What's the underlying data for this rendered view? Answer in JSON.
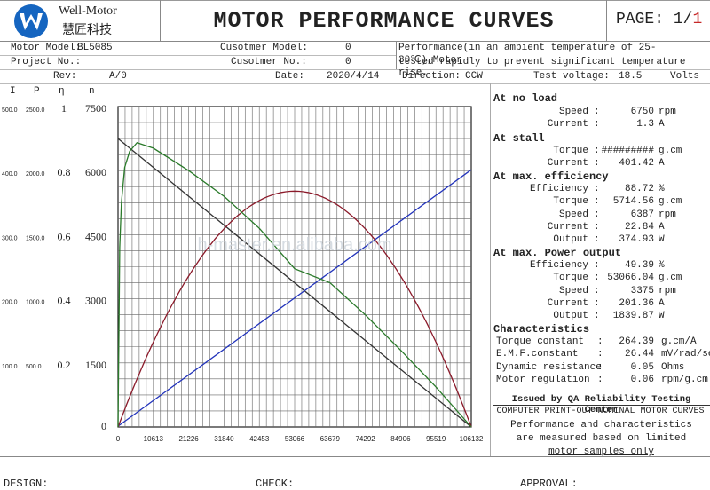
{
  "header": {
    "brand_name": "Well-Motor",
    "brand_chinese": "慧匠科技",
    "title": "MOTOR PERFORMANCE CURVES",
    "page_label": "PAGE:",
    "page_current": "1",
    "page_sep": "/",
    "page_total": "1"
  },
  "info": {
    "motor_model_label": "Motor Model:",
    "motor_model_value": "BL5085",
    "customer_model_label": "Cusotmer Model:",
    "customer_model_value": "0",
    "project_label": "Project No.:",
    "customer_no_label": "Cusotmer No.:",
    "customer_no_value": "0",
    "rev_label": "Rev:",
    "rev_value": "A/0",
    "date_label": "Date:",
    "date_value": "2020/4/14",
    "direction_label": "Direction:",
    "direction_value": "CCW",
    "test_voltage_label": "Test voltage:",
    "test_voltage_value": "18.5",
    "test_voltage_unit": "Volts",
    "note_line1": "Performance(in an ambient temperature of 25-30℃),Motor",
    "note_line2": "tested rapidly to prevent significant temperature rise."
  },
  "axis_headers": {
    "i": "I",
    "p": "P",
    "eta": "η",
    "n": "n"
  },
  "params": {
    "no_load": {
      "title": "At no load",
      "rows": [
        {
          "label": "Speed",
          "value": "6750",
          "unit": "rpm"
        },
        {
          "label": "Current",
          "value": "1.3",
          "unit": "A"
        }
      ]
    },
    "stall": {
      "title": "At stall",
      "rows": [
        {
          "label": "Torque",
          "value": "#########",
          "unit": "g.cm"
        },
        {
          "label": "Current",
          "value": "401.42",
          "unit": "A"
        }
      ]
    },
    "max_eff": {
      "title": "At max. efficiency",
      "rows": [
        {
          "label": "Efficiency",
          "value": "88.72",
          "unit": "%"
        },
        {
          "label": "Torque",
          "value": "5714.56",
          "unit": "g.cm"
        },
        {
          "label": "Speed",
          "value": "6387",
          "unit": "rpm"
        },
        {
          "label": "Current",
          "value": "22.84",
          "unit": "A"
        },
        {
          "label": "Output",
          "value": "374.93",
          "unit": "W"
        }
      ]
    },
    "max_power": {
      "title": "At max. Power output",
      "rows": [
        {
          "label": "Efficiency",
          "value": "49.39",
          "unit": "%"
        },
        {
          "label": "Torque",
          "value": "53066.04",
          "unit": "g.cm"
        },
        {
          "label": "Speed",
          "value": "3375",
          "unit": "rpm"
        },
        {
          "label": "Current",
          "value": "201.36",
          "unit": "A"
        },
        {
          "label": "Output",
          "value": "1839.87",
          "unit": "W"
        }
      ]
    },
    "characteristics": {
      "title": "Characteristics",
      "rows": [
        {
          "label": "Torque constant",
          "value": "264.39",
          "unit": "g.cm/A"
        },
        {
          "label": "E.M.F.constant",
          "value": "26.44",
          "unit": "mV/rad/sec"
        },
        {
          "label": "Dynamic resistance",
          "value": "0.05",
          "unit": "Ohms"
        },
        {
          "label": "Motor regulation",
          "value": "0.06",
          "unit": "rpm/g.cm"
        }
      ]
    },
    "colon": ":"
  },
  "issued": {
    "title": "Issued by QA Reliability Testing Center",
    "line1": "COMPUTER PRINT-OUT NOMINAL MOTOR CURVES",
    "line2": "Performance and characteristics",
    "line3": "are measured based on limited",
    "line4": "motor samples only"
  },
  "footer": {
    "design": "DESIGN:",
    "check": "CHECK:",
    "approval": "APPROVAL:"
  },
  "watermark": "h-master.en.alibaba.com",
  "chart_data": {
    "type": "line",
    "x_ticks": [
      "0",
      "10613",
      "21226",
      "31840",
      "42453",
      "53066",
      "63679",
      "74292",
      "84906",
      "95519",
      "106132"
    ],
    "xlim": [
      0,
      106132
    ],
    "axes": {
      "I": {
        "ticks": [
          "500.0",
          "400.0",
          "300.0",
          "200.0",
          "100.0"
        ],
        "range": [
          0,
          500
        ]
      },
      "P": {
        "ticks": [
          "2500.0",
          "2000.0",
          "1500.0",
          "1000.0",
          "500.0"
        ],
        "range": [
          0,
          2500
        ]
      },
      "eta": {
        "ticks": [
          "1",
          "0.8",
          "0.6",
          "0.4",
          "0.2"
        ],
        "range": [
          0,
          1
        ]
      },
      "n": {
        "ticks": [
          "7500",
          "6000",
          "4500",
          "3000",
          "1500",
          "0"
        ],
        "range": [
          0,
          7500
        ]
      }
    },
    "series": [
      {
        "key": "speed",
        "color": "#333333",
        "x": [
          0,
          106132
        ],
        "y": [
          6750,
          0
        ]
      },
      {
        "key": "current",
        "color": "#2233bb",
        "x": [
          0,
          106132
        ],
        "y": [
          1.3,
          401.42
        ]
      },
      {
        "key": "power",
        "color": "#8b1a2a",
        "x": [
          0,
          10613,
          21226,
          31840,
          42453,
          53066,
          63679,
          74292,
          84906,
          95519,
          106132
        ],
        "y": [
          0,
          662,
          1178,
          1546,
          1766,
          1840,
          1766,
          1546,
          1178,
          662,
          0
        ]
      },
      {
        "key": "efficiency",
        "color": "#2a7a2a",
        "x": [
          0,
          500,
          1000,
          2000,
          3500,
          5714.56,
          10613,
          21226,
          31840,
          42453,
          53066,
          63679,
          74292,
          84906,
          95519,
          106132
        ],
        "y": [
          0,
          0.56,
          0.7,
          0.81,
          0.86,
          0.8872,
          0.87,
          0.8,
          0.72,
          0.62,
          0.4939,
          0.45,
          0.35,
          0.24,
          0.125,
          0
        ]
      }
    ]
  }
}
